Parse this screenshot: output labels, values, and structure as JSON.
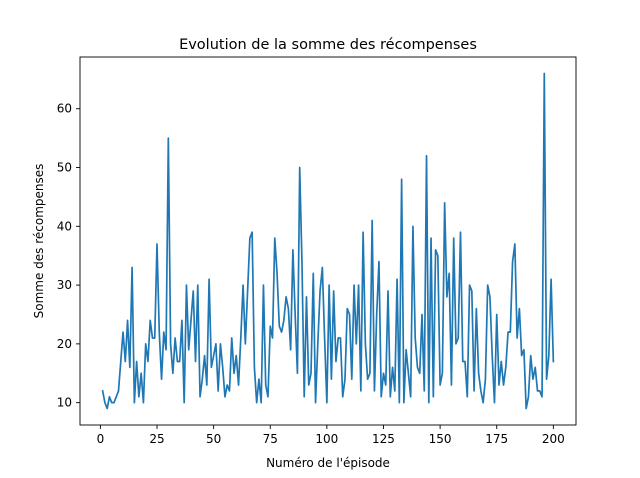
{
  "chart_data": {
    "type": "line",
    "title": "Evolution de la somme des récompenses",
    "xlabel": "Numéro de l'épisode",
    "ylabel": "Somme des récompenses",
    "xlim": [
      -9,
      210
    ],
    "ylim": [
      6.2,
      68.8
    ],
    "xticks": [
      0,
      25,
      50,
      75,
      100,
      125,
      150,
      175,
      200
    ],
    "yticks": [
      10,
      20,
      30,
      40,
      50,
      60
    ],
    "grid": false,
    "legend": "none",
    "series": [
      {
        "color": "#1f77b4",
        "x": [
          1,
          2,
          3,
          4,
          5,
          6,
          7,
          8,
          9,
          10,
          11,
          12,
          13,
          14,
          15,
          16,
          17,
          18,
          19,
          20,
          21,
          22,
          23,
          24,
          25,
          26,
          27,
          28,
          29,
          30,
          31,
          32,
          33,
          34,
          35,
          36,
          37,
          38,
          39,
          40,
          41,
          42,
          43,
          44,
          45,
          46,
          47,
          48,
          49,
          50,
          51,
          52,
          53,
          54,
          55,
          56,
          57,
          58,
          59,
          60,
          61,
          62,
          63,
          64,
          65,
          66,
          67,
          68,
          69,
          70,
          71,
          72,
          73,
          74,
          75,
          76,
          77,
          78,
          79,
          80,
          81,
          82,
          83,
          84,
          85,
          86,
          87,
          88,
          89,
          90,
          91,
          92,
          93,
          94,
          95,
          96,
          97,
          98,
          99,
          100,
          101,
          102,
          103,
          104,
          105,
          106,
          107,
          108,
          109,
          110,
          111,
          112,
          113,
          114,
          115,
          116,
          117,
          118,
          119,
          120,
          121,
          122,
          123,
          124,
          125,
          126,
          127,
          128,
          129,
          130,
          131,
          132,
          133,
          134,
          135,
          136,
          137,
          138,
          139,
          140,
          141,
          142,
          143,
          144,
          145,
          146,
          147,
          148,
          149,
          150,
          151,
          152,
          153,
          154,
          155,
          156,
          157,
          158,
          159,
          160,
          161,
          162,
          163,
          164,
          165,
          166,
          167,
          168,
          169,
          170,
          171,
          172,
          173,
          174,
          175,
          176,
          177,
          178,
          179,
          180,
          181,
          182,
          183,
          184,
          185,
          186,
          187,
          188,
          189,
          190,
          191,
          192,
          193,
          194,
          195,
          196,
          197,
          198,
          199,
          200
        ],
        "y": [
          12,
          10,
          9,
          11,
          10,
          10,
          11,
          12,
          17,
          22,
          17,
          24,
          16,
          33,
          10,
          17,
          11,
          15,
          10,
          20,
          17,
          24,
          21,
          21,
          37,
          22,
          14,
          22,
          19,
          55,
          20,
          15,
          21,
          17,
          17,
          24,
          10,
          30,
          19,
          24,
          29,
          17,
          30,
          11,
          14,
          18,
          13,
          31,
          16,
          18,
          20,
          12,
          20,
          16,
          11,
          13,
          12,
          21,
          15,
          18,
          13,
          21,
          30,
          20,
          29,
          38,
          39,
          16,
          10,
          14,
          10,
          30,
          13,
          11,
          23,
          21,
          38,
          32,
          23,
          22,
          24,
          28,
          26,
          19,
          36,
          25,
          15,
          50,
          34,
          11,
          28,
          13,
          15,
          32,
          10,
          20,
          29,
          33,
          21,
          10,
          30,
          14,
          29,
          17,
          21,
          21,
          11,
          14,
          26,
          25,
          14,
          30,
          20,
          30,
          12,
          39,
          20,
          14,
          15,
          41,
          12,
          25,
          34,
          11,
          15,
          13,
          29,
          11,
          16,
          12,
          31,
          10,
          48,
          10,
          19,
          15,
          11,
          40,
          21,
          16,
          15,
          25,
          12,
          52,
          10,
          38,
          11,
          36,
          35,
          13,
          15,
          44,
          28,
          32,
          13,
          38,
          20,
          21,
          39,
          17,
          17,
          11,
          30,
          29,
          12,
          26,
          15,
          12,
          10,
          14,
          30,
          28,
          18,
          10,
          25,
          13,
          17,
          13,
          16,
          22,
          22,
          34,
          37,
          21,
          26,
          18,
          19,
          9,
          11,
          18,
          14,
          16,
          12,
          12,
          11,
          66,
          14,
          18,
          31,
          17
        ]
      }
    ]
  }
}
